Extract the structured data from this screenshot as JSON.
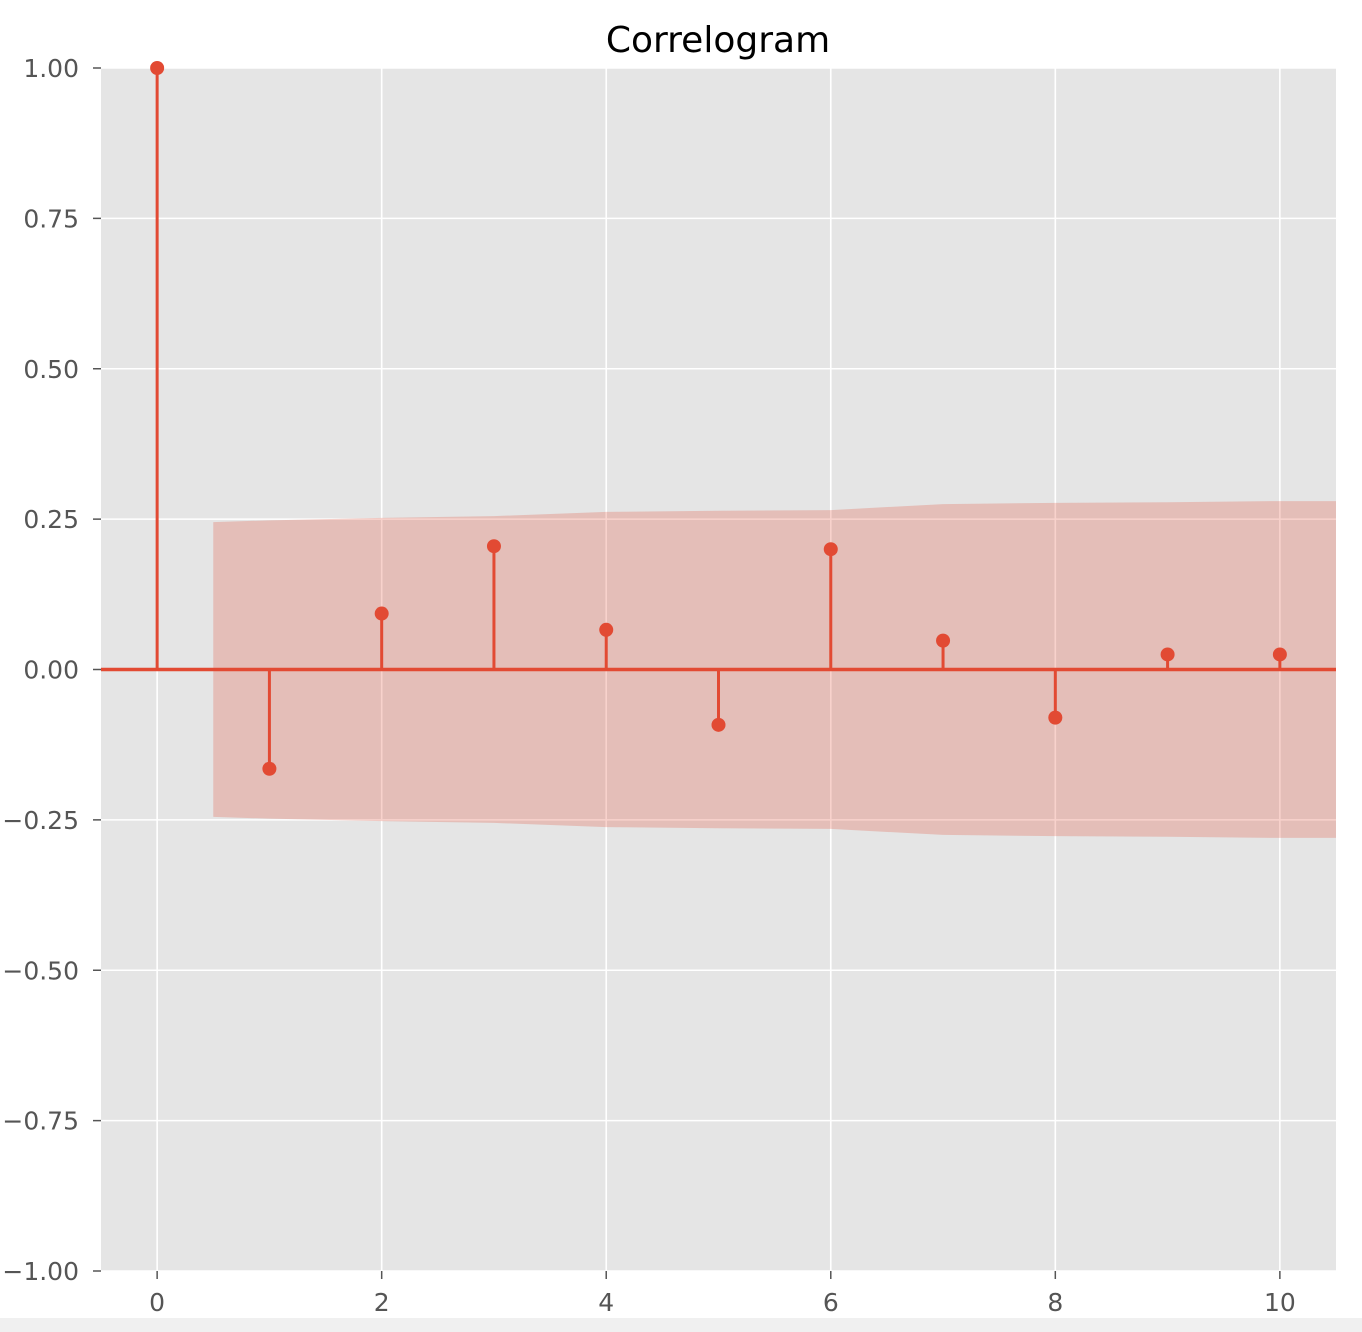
{
  "chart_data": {
    "type": "stem",
    "title": "Correlogram",
    "xlabel": "",
    "ylabel": "",
    "xlim": [
      -0.5,
      10.5
    ],
    "ylim": [
      -1.0,
      1.0
    ],
    "x_ticks": [
      0,
      2,
      4,
      6,
      8,
      10
    ],
    "x_tick_labels": [
      "0",
      "2",
      "4",
      "6",
      "8",
      "10"
    ],
    "y_ticks": [
      1.0,
      0.75,
      0.5,
      0.25,
      0.0,
      -0.25,
      -0.5,
      -0.75,
      -1.0
    ],
    "y_tick_labels": [
      "1.00",
      "0.75",
      "0.50",
      "0.25",
      "0.00",
      "−0.25",
      "−0.50",
      "−0.75",
      "−1.00"
    ],
    "grid": true,
    "x": [
      0,
      1,
      2,
      3,
      4,
      5,
      6,
      7,
      8,
      9,
      10
    ],
    "values": [
      1.0,
      -0.165,
      0.093,
      0.205,
      0.066,
      -0.092,
      0.2,
      0.048,
      -0.08,
      0.025,
      0.025
    ],
    "confidence_band": {
      "x": [
        0.5,
        1,
        2,
        3,
        4,
        5,
        6,
        7,
        8,
        9,
        10,
        10.5
      ],
      "upper": [
        0.245,
        0.248,
        0.252,
        0.255,
        0.262,
        0.264,
        0.265,
        0.275,
        0.277,
        0.278,
        0.28,
        0.28
      ],
      "lower": [
        -0.245,
        -0.248,
        -0.252,
        -0.255,
        -0.262,
        -0.264,
        -0.265,
        -0.275,
        -0.277,
        -0.278,
        -0.28,
        -0.28
      ]
    },
    "colors": {
      "stem": "#e24a33",
      "band": "#e24a33",
      "background": "#e5e5e5",
      "grid": "#ffffff"
    }
  }
}
